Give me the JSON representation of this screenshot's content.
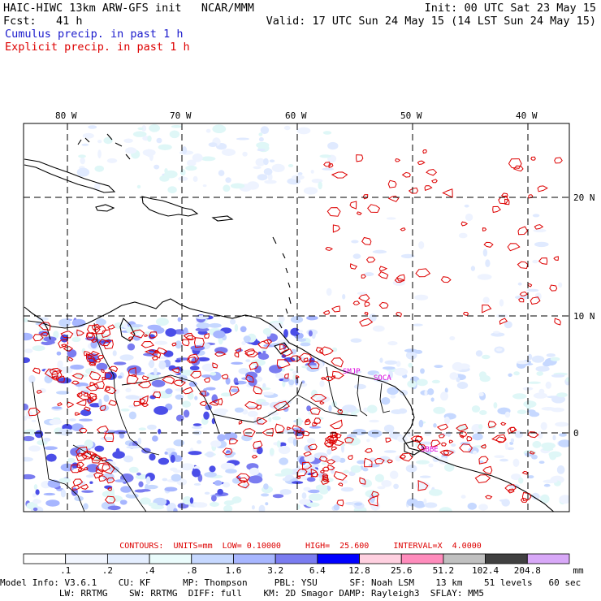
{
  "header": {
    "line1_left": "HAIC-HIWC 13km ARW-GFS init   NCAR/MMM",
    "line1_right": "Init: 00 UTC Sat 23 May 15",
    "line2_left": "Fcst:   41 h",
    "line2_right": "Valid: 17 UTC Sun 24 May 15 (14 LST Sun 24 May 15)",
    "cumulus_label": "Cumulus precip. in past 1 h",
    "explicit_label": "Explicit precip. in past 1 h"
  },
  "map": {
    "lon_labels": [
      "80 W",
      "70 W",
      "60 W",
      "50 W",
      "40 W"
    ],
    "lat_labels": [
      "20 N",
      "10 N",
      "0"
    ],
    "station_labels": [
      "SMJP",
      "SOCA",
      "SBBE"
    ],
    "colors": {
      "coast": "#000000",
      "grid": "#000000",
      "explicit": "#dd0000",
      "station": "#dd00dd"
    }
  },
  "contours": {
    "text": "CONTOURS:  UNITS=mm  LOW= 0.10000     HIGH=  25.600     INTERVAL=X  4.0000"
  },
  "colorbar": {
    "unit": "mm",
    "ticks": [
      ".1",
      ".2",
      ".4",
      ".8",
      "1.6",
      "3.2",
      "6.4",
      "12.8",
      "25.6",
      "51.2",
      "102.4",
      "204.8"
    ],
    "colors": [
      "#ffffff",
      "#f2f6ff",
      "#e4eeff",
      "#eafcfc",
      "#c6d8ff",
      "#a7b6ff",
      "#7a7cf0",
      "#0000ff",
      "#ffd0e0",
      "#ff8cbc",
      "#c0c0c0",
      "#404040",
      "#d8a8f8"
    ]
  },
  "footer": {
    "line1": "Model Info: V3.6.1    CU: KF      MP: Thompson     PBL: YSU      SF: Noah LSM    13 km    51 levels   60 sec",
    "line2": "           LW: RRTMG    SW: RRTMG  DIFF: full    KM: 2D Smagor DAMP: Rayleigh3  SFLAY: MM5"
  }
}
